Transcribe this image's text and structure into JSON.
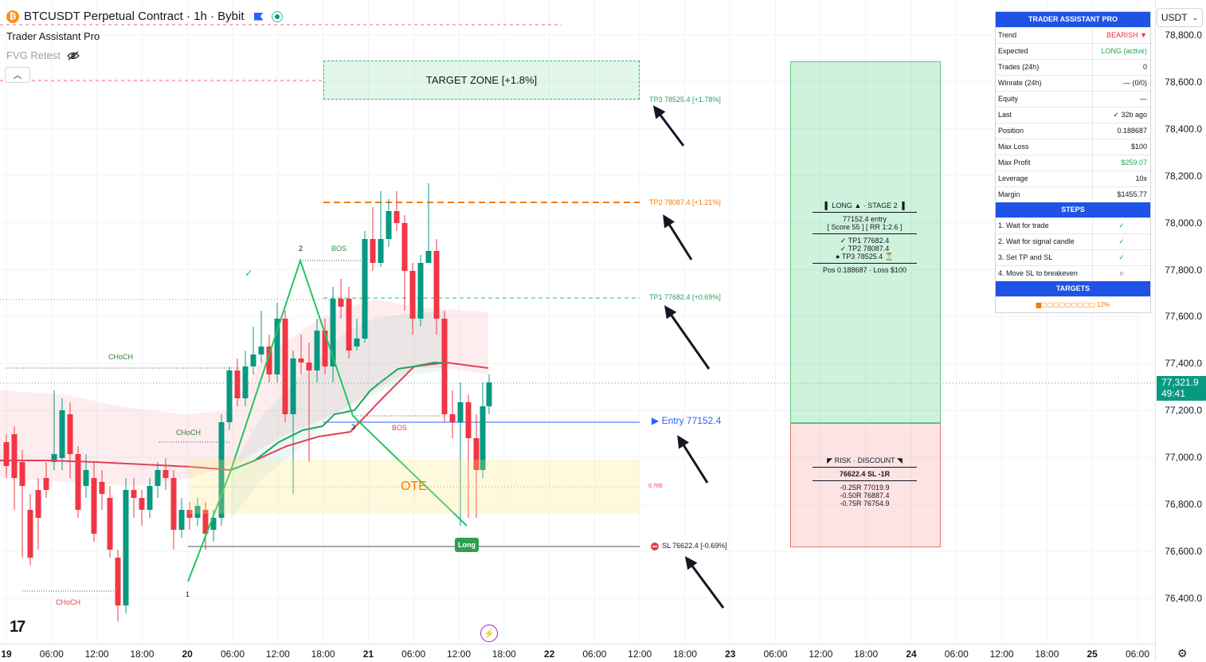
{
  "header": {
    "symbol_title": "BTCUSDT Perpetual Contract · 1h · Bybit",
    "coin_glyph": "₿",
    "indicator_name": "Trader Assistant Pro",
    "fvg_label": "FVG Retest"
  },
  "price_axis": {
    "currency": "USDT",
    "ticks": [
      "78,800.0",
      "78,600.0",
      "78,400.0",
      "78,200.0",
      "78,000.0",
      "77,800.0",
      "77,600.0",
      "77,400.0",
      "77,200.0",
      "77,000.0",
      "76,800.0",
      "76,600.0",
      "76,400.0"
    ],
    "last_price": "77,321.9",
    "countdown": "49:41"
  },
  "time_axis": {
    "ticks": [
      "19",
      "06:00",
      "12:00",
      "18:00",
      "20",
      "06:00",
      "12:00",
      "18:00",
      "21",
      "06:00",
      "12:00",
      "18:00",
      "22",
      "06:00",
      "12:00",
      "18:00",
      "23",
      "06:00",
      "12:00",
      "18:00",
      "24",
      "06:00",
      "12:00",
      "18:00",
      "25",
      "06:00"
    ]
  },
  "zones": {
    "target_zone": "TARGET ZONE [+1.8%]",
    "ote": "OTE",
    "fib_level": "0.705"
  },
  "levels": {
    "tp3": "TP3 78525.4 [+1.78%]",
    "tp2": "TP2 78087.4 [+1.21%]",
    "tp1": "TP1 77682.4 [+0.69%]",
    "entry": "▶ Entry 77152.4",
    "sl": "SL 76622.4 [-0.69%]"
  },
  "structure": {
    "bos_1": "BOS",
    "bos_2": "BOS",
    "choch_1": "CHoCH",
    "choch_2": "CHoCH",
    "choch_3": "CHoCH",
    "pivot_1": "1",
    "pivot_2": "2",
    "pivot_3": "3",
    "check": "✓"
  },
  "signal_tag": "Long",
  "long_panel": {
    "title": "▌ LONG ▲ · STAGE 2 ▐",
    "entry": "77152.4  entry",
    "score": "[ Score 55 ] [ RR 1:2.6 ]",
    "tp1": "✓ TP1   77682.4",
    "tp2": "✓ TP2   78087.4",
    "tp3": "● TP3   78525.4",
    "tp3_status": "⏳",
    "pos": "Pos 0.188687 · Loss $100"
  },
  "risk_panel": {
    "title": "◤ RISK · DISCOUNT ◥",
    "sl": "76622.4 SL  -1R",
    "r1": "-0.25R   77019.9",
    "r2": "-0.50R   76887.4",
    "r3": "-0.75R   76754.9"
  },
  "dashboard": {
    "title": "TRADER ASSISTANT PRO",
    "rows": [
      {
        "k": "Trend",
        "v": "BEARISH ▼",
        "color": "#e53935"
      },
      {
        "k": "Expected",
        "v": "LONG (active)",
        "color": "#22a55a"
      },
      {
        "k": "Trades (24h)",
        "v": "0",
        "color": "#131722"
      },
      {
        "k": "Winrate (24h)",
        "v": "— (0/0)",
        "color": "#131722"
      },
      {
        "k": "Equity",
        "v": "—",
        "color": "#131722"
      },
      {
        "k": "Last",
        "v": "✓ 32b ago",
        "color": "#131722"
      },
      {
        "k": "Position",
        "v": "0.188687",
        "color": "#131722"
      },
      {
        "k": "Max Loss",
        "v": "$100",
        "color": "#131722"
      },
      {
        "k": "Max Profit",
        "v": "$259.07",
        "color": "#22a55a"
      },
      {
        "k": "Leverage",
        "v": "10x",
        "color": "#131722"
      },
      {
        "k": "Margin",
        "v": "$1455.77",
        "color": "#131722"
      }
    ],
    "steps_title": "STEPS",
    "steps": [
      {
        "k": "1. Wait for trade",
        "v": "✓"
      },
      {
        "k": "2. Wait for signal candle",
        "v": "✓"
      },
      {
        "k": "3. Set TP and SL",
        "v": "✓"
      },
      {
        "k": "4. Move SL to breakeven",
        "v": "○"
      }
    ],
    "targets_title": "TARGETS",
    "progress": "▆▢▢▢▢▢▢▢▢▢  12%",
    "progress_fraction": 0.12
  },
  "colors": {
    "bull": "#089981",
    "bear": "#f23645",
    "accent": "#1e53e5",
    "tp_green": "#22c55e",
    "tp2_orange": "#f57c00"
  }
}
